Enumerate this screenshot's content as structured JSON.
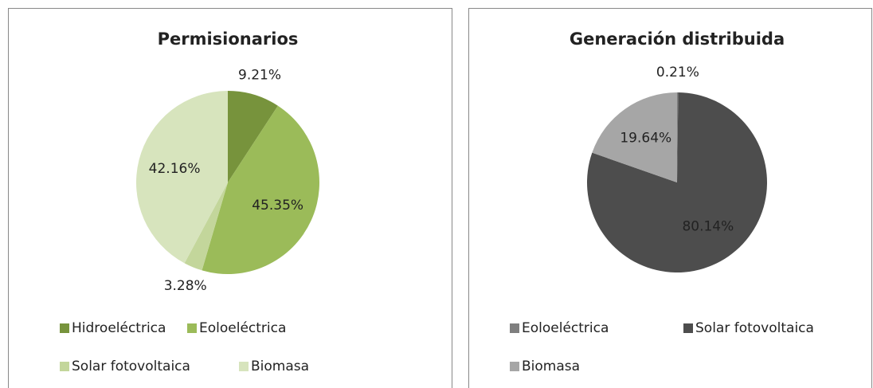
{
  "chart_data": [
    {
      "type": "pie",
      "title": "Permisionarios",
      "categories": [
        "Hidroeléctrica",
        "Eoloeléctrica",
        "Solar fotovoltaica",
        "Biomasa"
      ],
      "values": [
        9.21,
        45.35,
        3.28,
        42.16
      ],
      "value_labels": [
        "9.21%",
        "45.35%",
        "3.28%",
        "42.16%"
      ],
      "colors": [
        "#77933c",
        "#9bbb59",
        "#c3d69b",
        "#d7e4bd"
      ],
      "legend": "bottom"
    },
    {
      "type": "pie",
      "title": "Generación distribuida",
      "categories": [
        "Eoloeléctrica",
        "Solar fotovoltaica",
        "Biomasa"
      ],
      "values": [
        0.21,
        80.14,
        19.64
      ],
      "value_labels": [
        "0.21%",
        "80.14%",
        "19.64%"
      ],
      "colors": [
        "#7f7f7f",
        "#4d4d4d",
        "#a6a6a6"
      ],
      "legend": "bottom"
    }
  ]
}
